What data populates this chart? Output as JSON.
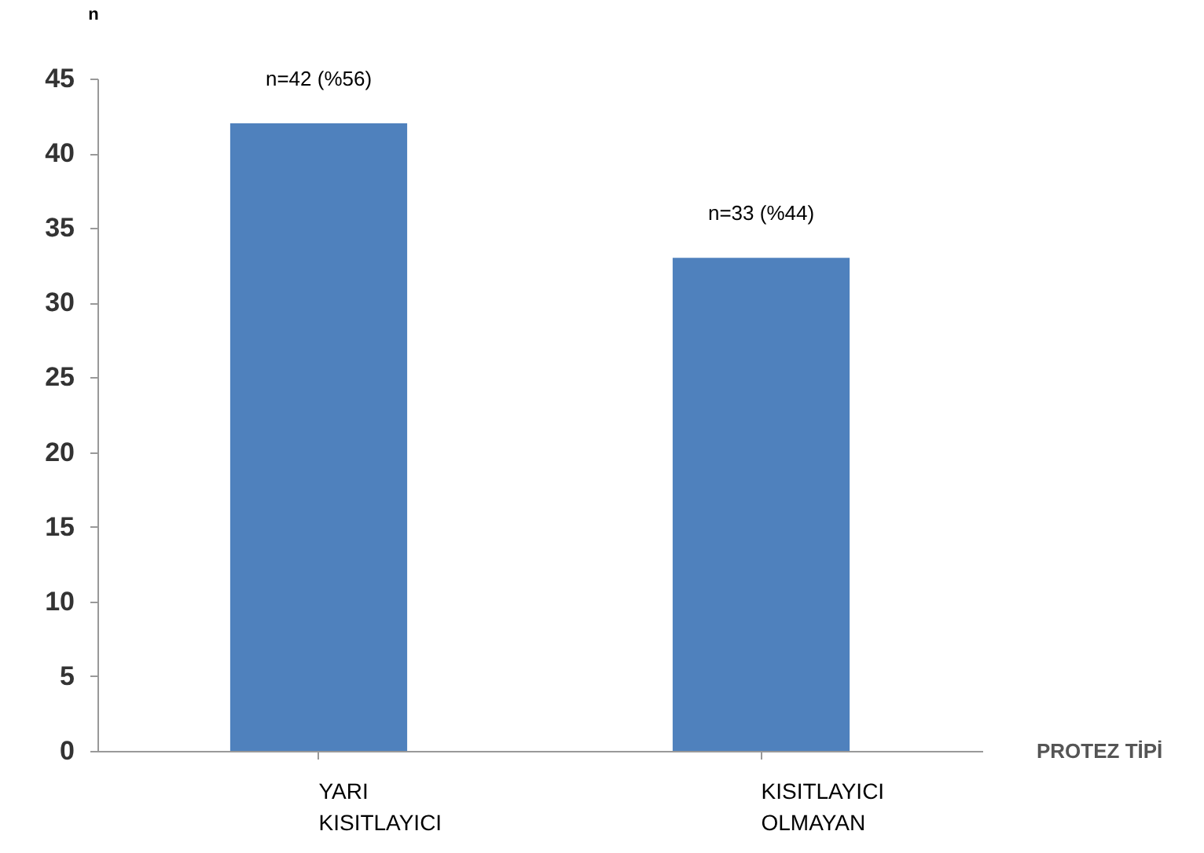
{
  "chart_data": {
    "type": "bar",
    "xlabel": "PROTEZ TİPİ",
    "ylabel": "n",
    "categories": [
      "YARI KISITLAYICI",
      "KISITLAYICI OLMAYAN"
    ],
    "values": [
      42,
      33
    ],
    "value_labels": [
      "n=42 (%56)",
      "n=33 (%44)"
    ],
    "color": "#4f81bd",
    "ylim": [
      0,
      45
    ],
    "yticks": [
      0,
      5,
      10,
      15,
      20,
      25,
      30,
      35,
      40,
      45
    ],
    "grid": false
  }
}
